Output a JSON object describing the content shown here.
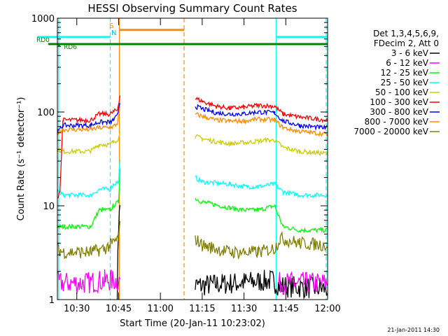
{
  "chart_data": {
    "type": "line",
    "title": "HESSI Observing Summary Count Rates",
    "xlabel": "Start Time (20-Jan-11 10:23:02)",
    "ylabel": "Count Rate (s⁻¹ detector⁻¹)",
    "y_scale": "log",
    "ylim": [
      1,
      1000
    ],
    "xlim": [
      "10:23:02",
      "12:00:00"
    ],
    "x_ticks": [
      "10:30",
      "10:45",
      "11:00",
      "11:15",
      "11:30",
      "11:45",
      "12:00"
    ],
    "y_ticks": [
      "1",
      "10",
      "100",
      "1000"
    ],
    "legend_header": [
      "Det 1,3,4,5,6,9,",
      "FDecim 2, Att 0"
    ],
    "legend_position": "right",
    "flag_labels": {
      "s": "S",
      "n": "N",
      "rd0": "RD0",
      "rd6": "RD6"
    },
    "footer_date": "21-Jan-2011 14:30",
    "vertical_markers": [
      {
        "time": "10:23:30",
        "color": "#00ffff",
        "style": "solid"
      },
      {
        "time": "10:42:00",
        "color": "#00ffff",
        "style": "dashed"
      },
      {
        "time": "10:45:15",
        "color": "#ff8c00",
        "style": "solid"
      },
      {
        "time": "11:08:30",
        "color": "#ff8c00",
        "style": "dashed"
      },
      {
        "time": "11:41:30",
        "color": "#00ffff",
        "style": "solid"
      },
      {
        "time": "11:59:30",
        "color": "#00ffff",
        "style": "dashed"
      }
    ],
    "flags": [
      {
        "name": "S",
        "color": "#ff8c00",
        "value": 750,
        "ranges": [
          [
            "10:45:15",
            "11:08:30"
          ]
        ]
      },
      {
        "name": "N",
        "color": "#00ffff",
        "value": 630,
        "ranges": [
          [
            "10:23:02",
            "10:42:00"
          ],
          [
            "11:41:30",
            "12:00:00"
          ]
        ]
      },
      {
        "name": "RD0",
        "color": "#008000",
        "value": 530,
        "ranges": [
          [
            "10:23:02",
            "12:00:00"
          ]
        ]
      }
    ],
    "gap": [
      "10:45:30",
      "11:12:30"
    ],
    "series": [
      {
        "name": "3 - 6 keV",
        "color": "#000000",
        "segments": [
          {
            "x": [
              "10:44:30",
              "10:45:00",
              "10:45:30"
            ],
            "y": [
              1.2,
              6,
              10
            ]
          },
          {
            "x": [
              "11:12:30",
              "11:40:00",
              "11:43:00",
              "12:00:00"
            ],
            "y": [
              1.4,
              1.6,
              1.4,
              1.3
            ]
          }
        ]
      },
      {
        "name": "6 - 12 keV",
        "color": "#ff00ff",
        "segments": [
          {
            "x": [
              "10:23:02",
              "10:33:00",
              "10:40:00",
              "10:42:00",
              "10:45:30"
            ],
            "y": [
              1.5,
              1.5,
              1.6,
              1.6,
              1.6
            ]
          },
          {
            "x": [
              "11:42:30",
              "11:50:00",
              "12:00:00"
            ],
            "y": [
              1.5,
              1.5,
              1.5
            ]
          }
        ]
      },
      {
        "name": "12 - 25 keV",
        "color": "#00ff00",
        "segments": [
          {
            "x": [
              "10:23:02",
              "10:25:00",
              "10:35:00",
              "10:38:00",
              "10:42:00",
              "10:43:00",
              "10:45:00",
              "10:45:30"
            ],
            "y": [
              6,
              6,
              6,
              9,
              9,
              10,
              11,
              25
            ]
          },
          {
            "x": [
              "11:12:30",
              "11:15:00",
              "11:25:00",
              "11:30:00",
              "11:35:00",
              "11:41:00",
              "11:44:00",
              "11:50:00",
              "12:00:00"
            ],
            "y": [
              12,
              11,
              9.5,
              9,
              9,
              10,
              6,
              5.5,
              5.5
            ]
          }
        ]
      },
      {
        "name": "25 - 50 keV",
        "color": "#00ffff",
        "segments": [
          {
            "x": [
              "10:23:02",
              "10:25:00",
              "10:35:00",
              "10:38:00",
              "10:42:00",
              "10:43:00",
              "10:45:00",
              "10:45:30"
            ],
            "y": [
              15,
              13,
              13,
              15,
              15,
              17,
              18,
              30
            ]
          },
          {
            "x": [
              "11:12:30",
              "11:15:00",
              "11:25:00",
              "11:30:00",
              "11:35:00",
              "11:41:00",
              "11:44:00",
              "11:50:00",
              "12:00:00"
            ],
            "y": [
              20,
              18,
              17,
              16,
              16,
              17,
              14,
              13,
              13
            ]
          }
        ]
      },
      {
        "name": "50 - 100 keV",
        "color": "#cccc00",
        "segments": [
          {
            "x": [
              "10:23:02",
              "10:25:00",
              "10:35:00",
              "10:38:00",
              "10:42:00",
              "10:43:00",
              "10:45:00",
              "10:45:30"
            ],
            "y": [
              40,
              38,
              38,
              45,
              45,
              48,
              52,
              65
            ]
          },
          {
            "x": [
              "11:12:30",
              "11:15:00",
              "11:20:00",
              "11:25:00",
              "11:30:00",
              "11:38:00",
              "11:41:00",
              "11:44:00",
              "11:50:00",
              "12:00:00"
            ],
            "y": [
              55,
              52,
              48,
              46,
              47,
              50,
              50,
              42,
              38,
              36
            ]
          }
        ]
      },
      {
        "name": "100 - 300 keV",
        "color": "#ff0000",
        "segments": [
          {
            "x": [
              "10:23:02",
              "10:24:00",
              "10:25:00",
              "10:35:00",
              "10:38:00",
              "10:42:00",
              "10:43:00",
              "10:44:30",
              "10:45:30"
            ],
            "y": [
              12,
              15,
              82,
              82,
              95,
              95,
              100,
              105,
              150
            ]
          },
          {
            "x": [
              "11:12:30",
              "11:15:00",
              "11:20:00",
              "11:25:00",
              "11:30:00",
              "11:35:00",
              "11:41:00",
              "11:44:00",
              "11:50:00",
              "12:00:00"
            ],
            "y": [
              140,
              130,
              115,
              110,
              112,
              118,
              115,
              95,
              88,
              82
            ]
          }
        ]
      },
      {
        "name": "300 - 800 keV",
        "color": "#0000ff",
        "segments": [
          {
            "x": [
              "10:23:02",
              "10:25:00",
              "10:35:00",
              "10:38:00",
              "10:42:00",
              "10:43:00",
              "10:44:30",
              "10:45:30"
            ],
            "y": [
              60,
              72,
              72,
              78,
              78,
              82,
              90,
              130
            ]
          },
          {
            "x": [
              "11:12:30",
              "11:15:00",
              "11:20:00",
              "11:25:00",
              "11:30:00",
              "11:35:00",
              "11:41:00",
              "11:44:00",
              "11:50:00",
              "12:00:00"
            ],
            "y": [
              115,
              108,
              98,
              95,
              96,
              100,
              98,
              80,
              72,
              67
            ]
          }
        ]
      },
      {
        "name": "800 - 7000 keV",
        "color": "#ff8c00",
        "segments": [
          {
            "x": [
              "10:23:02",
              "10:25:00",
              "10:35:00",
              "10:38:00",
              "10:42:00",
              "10:43:00",
              "10:44:30",
              "10:45:30"
            ],
            "y": [
              60,
              65,
              65,
              68,
              68,
              70,
              75,
              110
            ]
          },
          {
            "x": [
              "11:12:30",
              "11:15:00",
              "11:20:00",
              "11:25:00",
              "11:30:00",
              "11:35:00",
              "11:41:00",
              "11:44:00",
              "11:50:00",
              "12:00:00"
            ],
            "y": [
              95,
              90,
              82,
              80,
              80,
              84,
              82,
              68,
              62,
              58
            ]
          }
        ]
      },
      {
        "name": "7000 - 20000 keV",
        "color": "#808000",
        "segments": [
          {
            "x": [
              "10:23:02",
              "10:25:00",
              "10:35:00",
              "10:40:00",
              "10:42:00",
              "10:45:00",
              "10:45:30"
            ],
            "y": [
              3.5,
              3.2,
              3.2,
              3.5,
              3.8,
              4.5,
              6
            ]
          },
          {
            "x": [
              "11:12:30",
              "11:15:00",
              "11:25:00",
              "11:35:00",
              "11:41:00",
              "11:43:00",
              "11:50:00",
              "12:00:00"
            ],
            "y": [
              4.5,
              3.8,
              3.2,
              3.2,
              3.5,
              4.5,
              4,
              3.8
            ]
          }
        ]
      }
    ]
  }
}
